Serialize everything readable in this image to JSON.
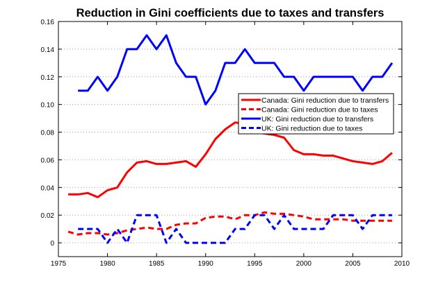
{
  "chart_data": {
    "type": "line",
    "title": "Reduction in Gini coefficients due to taxes and transfers",
    "xlabel": "",
    "ylabel": "",
    "xlim": [
      1975,
      2010
    ],
    "ylim": [
      -0.01,
      0.16
    ],
    "xticks": [
      1975,
      1980,
      1985,
      1990,
      1995,
      2000,
      2005,
      2010
    ],
    "yticks": [
      "0",
      "0.02",
      "0.04",
      "0.06",
      "0.08",
      "0.10",
      "0.12",
      "0.14",
      "0.16"
    ],
    "grid": "horizontal dotted",
    "legend_position": "right-middle",
    "series": [
      {
        "name": "Canada: Gini reduction due to transfers",
        "color": "#ff0000",
        "style": "solid",
        "x": [
          1976,
          1977,
          1978,
          1979,
          1980,
          1981,
          1982,
          1983,
          1984,
          1985,
          1986,
          1987,
          1988,
          1989,
          1990,
          1991,
          1992,
          1993,
          1994,
          1995,
          1996,
          1997,
          1998,
          1999,
          2000,
          2001,
          2002,
          2003,
          2004,
          2005,
          2006,
          2007,
          2008,
          2009
        ],
        "y": [
          0.035,
          0.035,
          0.036,
          0.033,
          0.038,
          0.04,
          0.051,
          0.058,
          0.059,
          0.057,
          0.057,
          0.058,
          0.059,
          0.055,
          0.064,
          0.075,
          0.082,
          0.087,
          0.086,
          0.08,
          0.079,
          0.078,
          0.076,
          0.067,
          0.064,
          0.064,
          0.063,
          0.063,
          0.061,
          0.059,
          0.058,
          0.057,
          0.059,
          0.065
        ]
      },
      {
        "name": "Canada: Gini reduction due to taxes",
        "color": "#ff0000",
        "style": "dashed",
        "x": [
          1976,
          1977,
          1978,
          1979,
          1980,
          1981,
          1982,
          1983,
          1984,
          1985,
          1986,
          1987,
          1988,
          1989,
          1990,
          1991,
          1992,
          1993,
          1994,
          1995,
          1996,
          1997,
          1998,
          1999,
          2000,
          2001,
          2002,
          2003,
          2004,
          2005,
          2006,
          2007,
          2008,
          2009
        ],
        "y": [
          0.008,
          0.006,
          0.007,
          0.007,
          0.006,
          0.007,
          0.009,
          0.01,
          0.011,
          0.01,
          0.01,
          0.013,
          0.014,
          0.014,
          0.018,
          0.019,
          0.019,
          0.017,
          0.02,
          0.02,
          0.022,
          0.021,
          0.021,
          0.02,
          0.019,
          0.017,
          0.017,
          0.017,
          0.017,
          0.016,
          0.016,
          0.016,
          0.016,
          0.016
        ]
      },
      {
        "name": "UK: Gini reduction due to transfers",
        "color": "#0000ff",
        "style": "solid",
        "x": [
          1977,
          1978,
          1979,
          1980,
          1981,
          1982,
          1983,
          1984,
          1985,
          1986,
          1987,
          1988,
          1989,
          1990,
          1991,
          1992,
          1993,
          1994,
          1995,
          1996,
          1997,
          1998,
          1999,
          2000,
          2001,
          2002,
          2003,
          2004,
          2005,
          2006,
          2007,
          2008,
          2009
        ],
        "y": [
          0.11,
          0.11,
          0.12,
          0.11,
          0.12,
          0.14,
          0.14,
          0.15,
          0.14,
          0.15,
          0.13,
          0.12,
          0.12,
          0.1,
          0.11,
          0.13,
          0.13,
          0.14,
          0.13,
          0.13,
          0.13,
          0.12,
          0.12,
          0.11,
          0.12,
          0.12,
          0.12,
          0.12,
          0.12,
          0.11,
          0.12,
          0.12,
          0.13
        ]
      },
      {
        "name": "UK: Gini reduction due to taxes",
        "color": "#0000ff",
        "style": "dashed",
        "x": [
          1977,
          1978,
          1979,
          1980,
          1981,
          1982,
          1983,
          1984,
          1985,
          1986,
          1987,
          1988,
          1989,
          1990,
          1991,
          1992,
          1993,
          1994,
          1995,
          1996,
          1997,
          1998,
          1999,
          2000,
          2001,
          2002,
          2003,
          2004,
          2005,
          2006,
          2007,
          2008,
          2009
        ],
        "y": [
          0.01,
          0.01,
          0.01,
          0.0,
          0.01,
          0.0,
          0.02,
          0.02,
          0.02,
          0.0,
          0.01,
          0.0,
          0.0,
          0.0,
          0.0,
          0.0,
          0.01,
          0.01,
          0.02,
          0.02,
          0.01,
          0.02,
          0.01,
          0.01,
          0.01,
          0.01,
          0.02,
          0.02,
          0.02,
          0.01,
          0.02,
          0.02,
          0.02
        ]
      }
    ]
  }
}
